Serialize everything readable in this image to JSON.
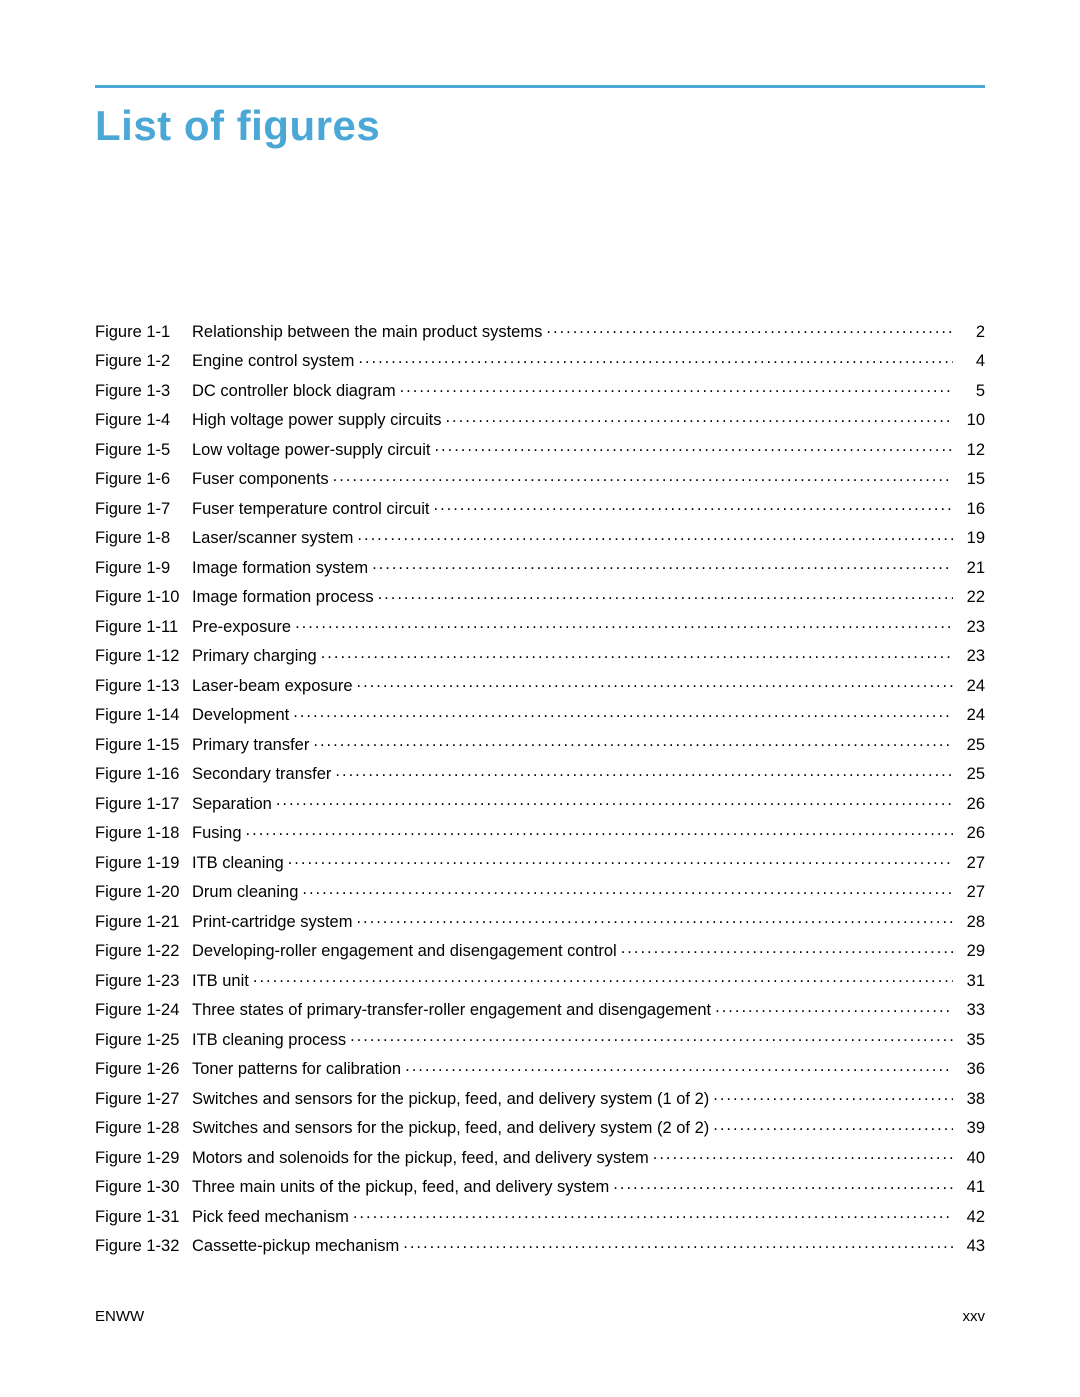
{
  "colors": {
    "accent": "#4aa7d6",
    "text": "#000000",
    "background": "#ffffff"
  },
  "typography": {
    "title_fontsize": 42,
    "body_fontsize": 16.5,
    "footer_fontsize": 15,
    "title_weight": "700"
  },
  "title": "List of figures",
  "footer": {
    "left": "ENWW",
    "right": "xxv"
  },
  "entries": [
    {
      "label": "Figure 1-1",
      "title": "Relationship between the main product systems",
      "page": "2"
    },
    {
      "label": "Figure 1-2",
      "title": "Engine control system",
      "page": "4"
    },
    {
      "label": "Figure 1-3",
      "title": "DC controller block diagram",
      "page": "5"
    },
    {
      "label": "Figure 1-4",
      "title": "High voltage power supply circuits",
      "page": "10"
    },
    {
      "label": "Figure 1-5",
      "title": "Low voltage power-supply circuit",
      "page": "12"
    },
    {
      "label": "Figure 1-6",
      "title": "Fuser components",
      "page": "15"
    },
    {
      "label": "Figure 1-7",
      "title": "Fuser temperature control circuit",
      "page": "16"
    },
    {
      "label": "Figure 1-8",
      "title": "Laser/scanner system",
      "page": "19"
    },
    {
      "label": "Figure 1-9",
      "title": "Image formation system",
      "page": "21"
    },
    {
      "label": "Figure 1-10",
      "title": "Image formation process",
      "page": "22"
    },
    {
      "label": "Figure 1-11",
      "title": "Pre-exposure",
      "page": "23"
    },
    {
      "label": "Figure 1-12",
      "title": "Primary charging",
      "page": "23"
    },
    {
      "label": "Figure 1-13",
      "title": "Laser-beam exposure",
      "page": "24"
    },
    {
      "label": "Figure 1-14",
      "title": "Development",
      "page": "24"
    },
    {
      "label": "Figure 1-15",
      "title": "Primary transfer",
      "page": "25"
    },
    {
      "label": "Figure 1-16",
      "title": "Secondary transfer",
      "page": "25"
    },
    {
      "label": "Figure 1-17",
      "title": "Separation",
      "page": "26"
    },
    {
      "label": "Figure 1-18",
      "title": "Fusing",
      "page": "26"
    },
    {
      "label": "Figure 1-19",
      "title": "ITB cleaning",
      "page": "27"
    },
    {
      "label": "Figure 1-20",
      "title": "Drum cleaning",
      "page": "27"
    },
    {
      "label": "Figure 1-21",
      "title": "Print-cartridge system",
      "page": "28"
    },
    {
      "label": "Figure 1-22",
      "title": "Developing-roller engagement and disengagement control",
      "page": "29"
    },
    {
      "label": "Figure 1-23",
      "title": "ITB unit",
      "page": "31"
    },
    {
      "label": "Figure 1-24",
      "title": "Three states of primary-transfer-roller engagement and disengagement",
      "page": "33"
    },
    {
      "label": "Figure 1-25",
      "title": "ITB cleaning process",
      "page": "35"
    },
    {
      "label": "Figure 1-26",
      "title": "Toner patterns for calibration",
      "page": "36"
    },
    {
      "label": "Figure 1-27",
      "title": "Switches and sensors for the pickup, feed, and delivery system (1 of 2)",
      "page": "38"
    },
    {
      "label": "Figure 1-28",
      "title": "Switches and sensors for the pickup, feed, and delivery system (2 of 2)",
      "page": "39"
    },
    {
      "label": "Figure 1-29",
      "title": "Motors and solenoids for the pickup, feed, and delivery system",
      "page": "40"
    },
    {
      "label": "Figure 1-30",
      "title": "Three main units of the pickup, feed, and delivery system",
      "page": "41"
    },
    {
      "label": "Figure 1-31",
      "title": "Pick feed mechanism",
      "page": "42"
    },
    {
      "label": "Figure 1-32",
      "title": "Cassette-pickup mechanism",
      "page": "43"
    }
  ]
}
